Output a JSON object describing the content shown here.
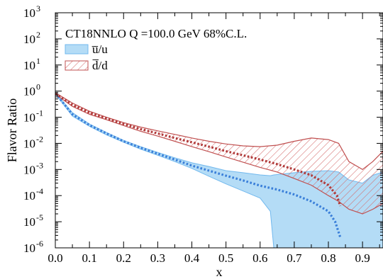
{
  "chart_data": {
    "type": "line",
    "title": "CT18NNLO Q =100.0 GeV 68%C.L.",
    "xlabel": "x",
    "ylabel": "Flavor Ratio",
    "xlim": [
      0.0,
      0.96
    ],
    "ylim": [
      1e-06,
      1000
    ],
    "yscale": "log",
    "grid": false,
    "legend_placement": "top-left",
    "x_ticks": [
      0.0,
      0.1,
      0.2,
      0.3,
      0.4,
      0.5,
      0.6,
      0.7,
      0.8,
      0.9
    ],
    "x_tick_labels": [
      "0.0",
      "0.1",
      "0.2",
      "0.3",
      "0.4",
      "0.5",
      "0.6",
      "0.7",
      "0.8",
      "0.9"
    ],
    "y_ticks": [
      {
        "value": 1e-06,
        "base": "10",
        "exp": "-6"
      },
      {
        "value": 1e-05,
        "base": "10",
        "exp": "-5"
      },
      {
        "value": 0.0001,
        "base": "10",
        "exp": "-4"
      },
      {
        "value": 0.001,
        "base": "10",
        "exp": "-3"
      },
      {
        "value": 0.01,
        "base": "10",
        "exp": "-2"
      },
      {
        "value": 0.1,
        "base": "10",
        "exp": "-1"
      },
      {
        "value": 1,
        "base": "10",
        "exp": "0"
      },
      {
        "value": 10,
        "base": "10",
        "exp": "1"
      },
      {
        "value": 100,
        "base": "10",
        "exp": "2"
      },
      {
        "value": 1000,
        "base": "10",
        "exp": "3"
      }
    ],
    "series": [
      {
        "name": "u̅/u",
        "color": "#3a7fd9",
        "band_fill": "#b4dcf6",
        "band_edge": "#72b9ee",
        "band_style": "solid",
        "x": [
          0.001,
          0.05,
          0.1,
          0.15,
          0.2,
          0.25,
          0.3,
          0.35,
          0.4,
          0.45,
          0.5,
          0.55,
          0.6,
          0.65,
          0.7,
          0.75,
          0.8,
          0.82,
          0.835
        ],
        "central": [
          0.8,
          0.13,
          0.05,
          0.024,
          0.012,
          0.0068,
          0.004,
          0.0024,
          0.0014,
          0.0009,
          0.00058,
          0.00038,
          0.00024,
          0.00017,
          0.00011,
          6e-05,
          2.5e-05,
          1e-05,
          2.5e-06
        ],
        "band_x": [
          0.001,
          0.05,
          0.1,
          0.15,
          0.2,
          0.25,
          0.3,
          0.35,
          0.4,
          0.45,
          0.5,
          0.55,
          0.6,
          0.63,
          0.64,
          0.7,
          0.75,
          0.8,
          0.83,
          0.86,
          0.9,
          0.93,
          0.96
        ],
        "band_upper": [
          0.85,
          0.15,
          0.055,
          0.026,
          0.013,
          0.0075,
          0.0045,
          0.0028,
          0.0018,
          0.0013,
          0.0009,
          0.00075,
          0.00062,
          0.00058,
          0.00062,
          0.00075,
          0.00085,
          0.0009,
          0.0008,
          0.0004,
          0.0003,
          0.0006,
          0.0008
        ],
        "band_lower": [
          0.75,
          0.11,
          0.045,
          0.021,
          0.011,
          0.006,
          0.0035,
          0.002,
          0.0011,
          0.00055,
          0.00028,
          0.00015,
          8e-05,
          2.5e-05,
          1e-06,
          1e-06,
          1e-06,
          1e-06,
          1e-06,
          1e-06,
          1e-06,
          1e-06,
          1e-06
        ]
      },
      {
        "name": "d̅/d",
        "color": "#b03a3a",
        "band_fill": "#ffffff",
        "band_edge": "#c05050",
        "band_style": "hatched",
        "x": [
          0.001,
          0.05,
          0.1,
          0.15,
          0.2,
          0.25,
          0.3,
          0.35,
          0.4,
          0.45,
          0.5,
          0.55,
          0.6,
          0.65,
          0.7,
          0.75,
          0.8,
          0.825,
          0.835
        ],
        "central": [
          0.8,
          0.3,
          0.15,
          0.09,
          0.055,
          0.035,
          0.024,
          0.016,
          0.011,
          0.0075,
          0.005,
          0.0035,
          0.0024,
          0.0016,
          0.001,
          0.0006,
          0.00025,
          0.0001,
          4e-05
        ],
        "band_x": [
          0.001,
          0.05,
          0.1,
          0.15,
          0.2,
          0.25,
          0.3,
          0.35,
          0.4,
          0.45,
          0.5,
          0.55,
          0.6,
          0.65,
          0.7,
          0.75,
          0.8,
          0.83,
          0.86,
          0.9,
          0.93,
          0.96
        ],
        "band_upper": [
          0.85,
          0.35,
          0.17,
          0.1,
          0.062,
          0.042,
          0.03,
          0.022,
          0.016,
          0.012,
          0.0095,
          0.008,
          0.0075,
          0.0085,
          0.012,
          0.016,
          0.014,
          0.01,
          0.002,
          0.001,
          0.002,
          0.005
        ],
        "band_lower": [
          0.75,
          0.26,
          0.13,
          0.08,
          0.048,
          0.029,
          0.019,
          0.012,
          0.0075,
          0.0048,
          0.003,
          0.0019,
          0.0012,
          0.0008,
          0.00045,
          0.00025,
          0.0001,
          6e-05,
          3e-05,
          2e-05,
          3e-05,
          5e-05
        ]
      }
    ]
  }
}
